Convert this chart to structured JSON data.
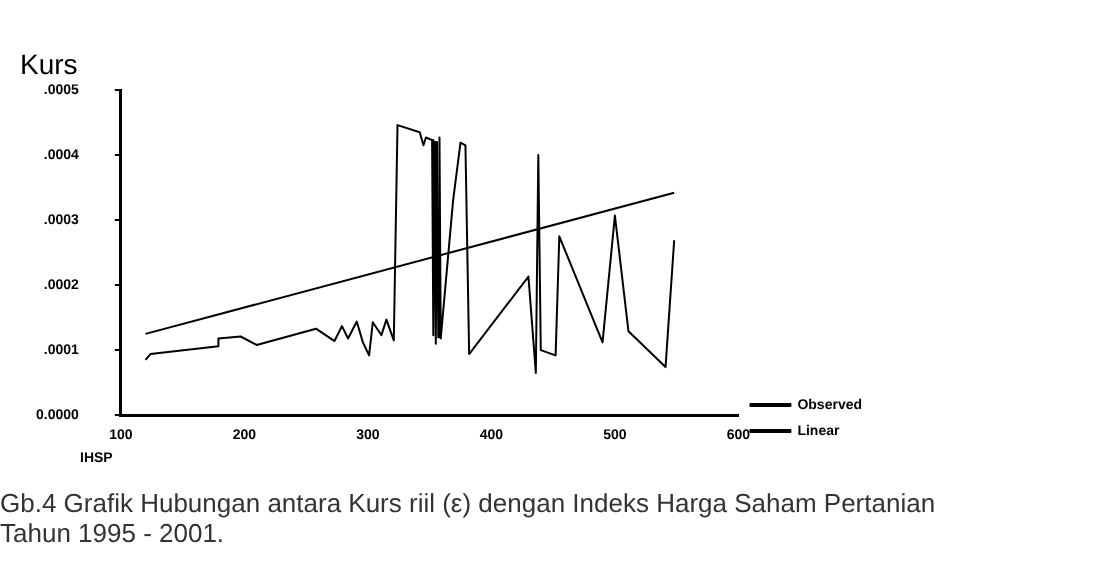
{
  "chart_data": {
    "type": "line",
    "ylabel": "Kurs",
    "xlabel": "IHSP",
    "annotations": [
      "Gb.4 Grafik Hubungan antara Kurs riil (ε) dengan Indeks Harga Saham Pertanian\nTahun 1995 - 2001."
    ],
    "xlim": [
      100,
      600
    ],
    "xticks": [
      100,
      200,
      300,
      400,
      500,
      600
    ],
    "ylim": [
      0,
      0.0005
    ],
    "yticks": [
      {
        "value": 0,
        "label": "0.0000"
      },
      {
        "value": 0.0001,
        "label": ".0001"
      },
      {
        "value": 0.0002,
        "label": ".0002"
      },
      {
        "value": 0.0003,
        "label": ".0003"
      },
      {
        "value": 0.0004,
        "label": ".0004"
      },
      {
        "value": 0.0005,
        "label": ".0005"
      }
    ],
    "grid": false,
    "legend": "bottom right",
    "marker": "none",
    "line_style": "solid",
    "series": [
      {
        "name": "Observed",
        "color": "#000000",
        "x": [
          120,
          124,
          179,
          179,
          197,
          210,
          258,
          273,
          279,
          284,
          291,
          296,
          301,
          304,
          311,
          315,
          321,
          324,
          342,
          345,
          347,
          352,
          353,
          354,
          355,
          356,
          357,
          358,
          359,
          369,
          375,
          379,
          382,
          430,
          436,
          438,
          440,
          452,
          455,
          490,
          500,
          511,
          541,
          548
        ],
        "values": [
          8.5e-05,
          9.4e-05,
          0.000106,
          0.000118,
          0.000121,
          0.000108,
          0.000133,
          0.000114,
          0.000137,
          0.000118,
          0.000144,
          0.000112,
          9.2e-05,
          0.000143,
          0.000123,
          0.000147,
          0.000115,
          0.000446,
          0.000435,
          0.000415,
          0.000427,
          0.000423,
          0.000123,
          0.00042,
          0.00011,
          0.00042,
          0.00012,
          0.000427,
          0.000118,
          0.00033,
          0.000419,
          0.000415,
          9.4e-05,
          0.000213,
          6.5e-05,
          0.0004,
          0.0001,
          9.2e-05,
          0.000275,
          0.000112,
          0.000307,
          0.000129,
          7.4e-05,
          0.000269
        ]
      },
      {
        "name": "Linear",
        "color": "#000000",
        "x": [
          120,
          548
        ],
        "values": [
          0.000125,
          0.000342
        ]
      }
    ]
  }
}
